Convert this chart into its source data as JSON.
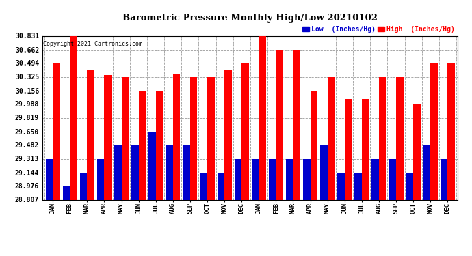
{
  "title": "Barometric Pressure Monthly High/Low 20210102",
  "copyright": "Copyright 2021 Cartronics.com",
  "legend_low": "Low  (Inches/Hg)",
  "legend_high": "High  (Inches/Hg)",
  "months": [
    "JAN",
    "FEB",
    "MAR",
    "APR",
    "MAY",
    "JUN",
    "JUL",
    "AUG",
    "SEP",
    "OCT",
    "NOV",
    "DEC",
    "JAN",
    "FEB",
    "MAR",
    "APR",
    "MAY",
    "JUN",
    "JUL",
    "AUG",
    "SEP",
    "OCT",
    "NOV",
    "DEC"
  ],
  "high_values": [
    30.494,
    30.831,
    30.41,
    30.35,
    30.325,
    30.156,
    30.156,
    30.36,
    30.325,
    30.325,
    30.41,
    30.494,
    30.831,
    30.662,
    30.662,
    30.156,
    30.325,
    30.05,
    30.05,
    30.325,
    30.325,
    29.988,
    30.494,
    30.494
  ],
  "low_values": [
    29.313,
    28.976,
    29.144,
    29.313,
    29.482,
    29.482,
    29.65,
    29.482,
    29.482,
    29.144,
    29.144,
    29.313,
    29.313,
    29.313,
    29.313,
    29.313,
    29.482,
    29.144,
    29.144,
    29.313,
    29.313,
    29.144,
    29.482,
    29.313
  ],
  "high_color": "#ff0000",
  "low_color": "#0000cc",
  "bg_color": "#ffffff",
  "grid_color": "#999999",
  "ymin": 28.807,
  "ymax": 30.831,
  "yticks": [
    28.807,
    28.976,
    29.144,
    29.313,
    29.482,
    29.65,
    29.819,
    29.988,
    30.156,
    30.325,
    30.494,
    30.662,
    30.831
  ]
}
